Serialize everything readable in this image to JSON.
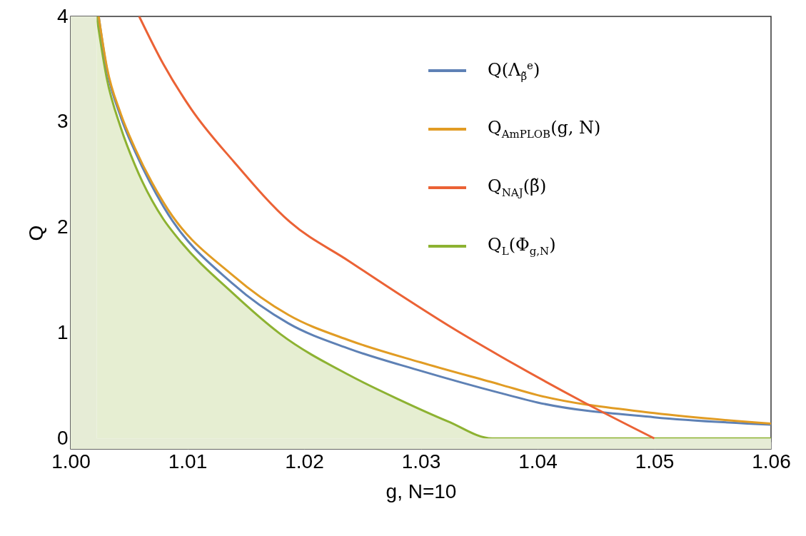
{
  "chart_data": {
    "type": "line",
    "xlabel": "g, N=10",
    "ylabel": "Q",
    "xlim": [
      1.0,
      1.06
    ],
    "ylim": [
      -0.1,
      4
    ],
    "xticks": [
      {
        "value": 1.0,
        "label": "1.00"
      },
      1.01,
      1.02,
      1.03,
      1.04,
      1.05,
      1.06
    ],
    "yticks": [
      0,
      1,
      2,
      3,
      4
    ],
    "grid": false,
    "legend": "top right",
    "bands": [
      {
        "axis": "y",
        "from": -0.1,
        "to": 0,
        "color": "#e6ecd6"
      },
      {
        "axis": "x",
        "from": 1.0,
        "to": 1.00223,
        "color": "#e6ecd6"
      }
    ],
    "series": [
      {
        "name": "Q(Λ$_{β̃}$$^{e}$)",
        "color": "#5e81b5",
        "x": [
          1.0024,
          1.0031,
          1.00428,
          1.00551,
          1.00793,
          1.01395,
          1.01866,
          1.02385,
          1.03,
          1.0368,
          1.04,
          1.05,
          1.06
        ],
        "values": [
          4,
          3.5,
          3.05,
          2.72,
          2.2,
          1.46,
          1.09,
          0.85,
          0.64,
          0.43,
          0.34,
          0.2,
          0.13
        ]
      },
      {
        "name": "Q$_{AmPLOB}$(g, N)",
        "color": "#e19c24",
        "x": [
          1.0024,
          1.0031,
          1.00428,
          1.00551,
          1.00793,
          1.01395,
          1.01866,
          1.02385,
          1.03,
          1.0368,
          1.04,
          1.05,
          1.06
        ],
        "values": [
          4,
          3.52,
          3.08,
          2.75,
          2.24,
          1.54,
          1.17,
          0.93,
          0.72,
          0.51,
          0.41,
          0.24,
          0.14
        ]
      },
      {
        "name": "Q$_{NAJ}$(β̃)",
        "color": "#eb6235",
        "x": [
          1.00587,
          1.00793,
          1.01034,
          1.014,
          1.0188,
          1.02385,
          1.0281,
          1.0328,
          1.0368,
          1.044,
          1.05
        ],
        "values": [
          4,
          3.55,
          3.12,
          2.62,
          2.05,
          1.68,
          1.37,
          1.04,
          0.78,
          0.34,
          0
        ]
      },
      {
        "name": "Q$_{L}$(Φ$_{g,N}$)",
        "type": "area",
        "color": "#8db232",
        "x": [
          1.00223,
          1.00308,
          1.00428,
          1.00551,
          1.00793,
          1.00924,
          1.01395,
          1.01795,
          1.02385,
          1.0281,
          1.03235,
          1.0361,
          1.06
        ],
        "values": [
          4,
          3.42,
          2.95,
          2.59,
          2.08,
          1.89,
          1.37,
          0.99,
          0.6,
          0.37,
          0.16,
          0,
          0
        ]
      }
    ]
  }
}
